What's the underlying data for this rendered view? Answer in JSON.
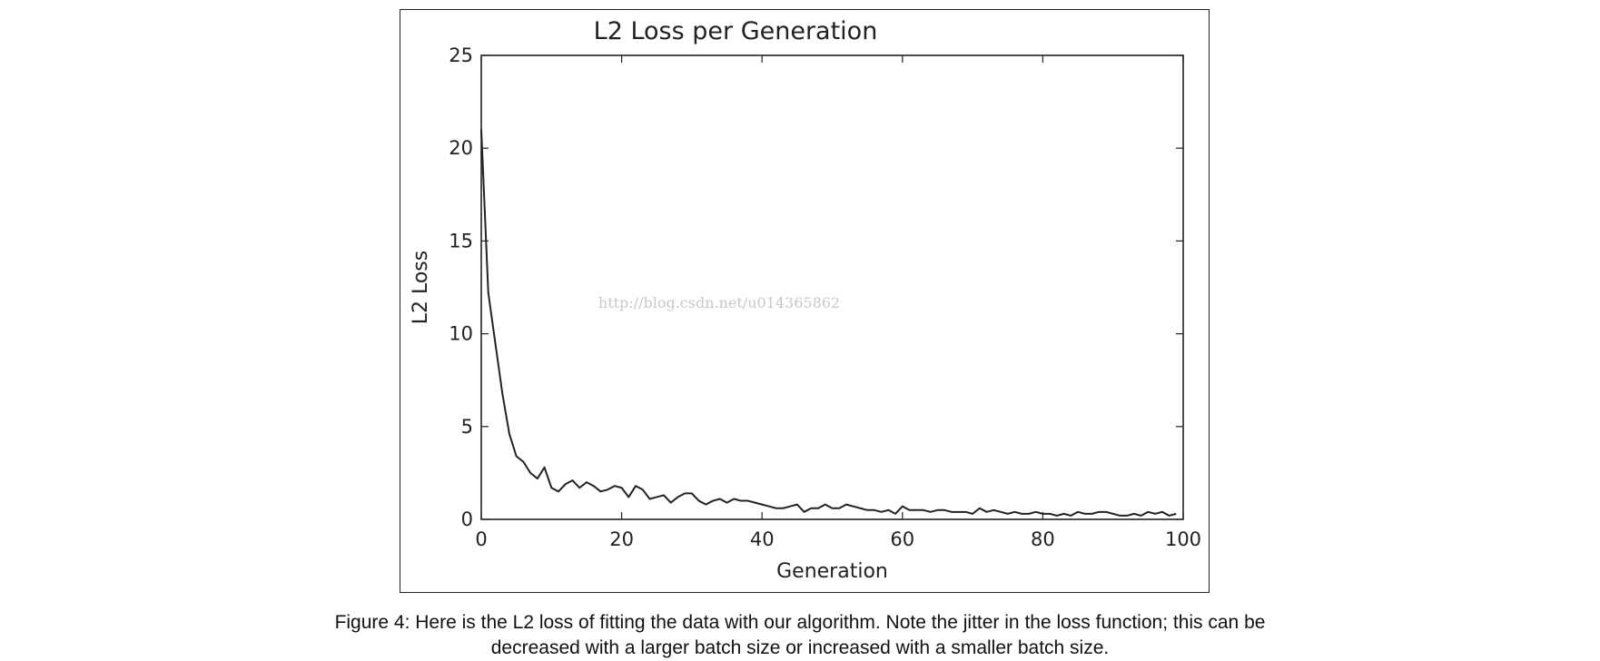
{
  "caption": {
    "line1": "Figure 4: Here is the L2 loss of fitting the data with our algorithm. Note the jitter in the loss function; this can be",
    "line2": "decreased with a larger batch size or increased with a smaller batch size."
  },
  "watermark": "http://blog.csdn.net/u014365862",
  "colors": {
    "line": "#222222",
    "axes": "#222222",
    "background": "#ffffff"
  },
  "chart_data": {
    "type": "line",
    "title": "L2 Loss per Generation",
    "xlabel": "Generation",
    "ylabel": "L2 Loss",
    "xlim": [
      0,
      100
    ],
    "ylim": [
      0,
      25
    ],
    "xticks": [
      0,
      20,
      40,
      60,
      80,
      100
    ],
    "yticks": [
      0,
      5,
      10,
      15,
      20,
      25
    ],
    "grid": false,
    "legend": "none",
    "x": [
      0,
      1,
      2,
      3,
      4,
      5,
      6,
      7,
      8,
      9,
      10,
      11,
      12,
      13,
      14,
      15,
      16,
      17,
      18,
      19,
      20,
      21,
      22,
      23,
      24,
      25,
      26,
      27,
      28,
      29,
      30,
      31,
      32,
      33,
      34,
      35,
      36,
      37,
      38,
      39,
      40,
      41,
      42,
      43,
      44,
      45,
      46,
      47,
      48,
      49,
      50,
      51,
      52,
      53,
      54,
      55,
      56,
      57,
      58,
      59,
      60,
      61,
      62,
      63,
      64,
      65,
      66,
      67,
      68,
      69,
      70,
      71,
      72,
      73,
      74,
      75,
      76,
      77,
      78,
      79,
      80,
      81,
      82,
      83,
      84,
      85,
      86,
      87,
      88,
      89,
      90,
      91,
      92,
      93,
      94,
      95,
      96,
      97,
      98,
      99
    ],
    "series": [
      {
        "values": [
          21.0,
          12.2,
          9.5,
          6.8,
          4.6,
          3.4,
          3.1,
          2.5,
          2.2,
          2.8,
          1.7,
          1.5,
          1.9,
          2.1,
          1.7,
          2.0,
          1.8,
          1.5,
          1.6,
          1.8,
          1.7,
          1.2,
          1.8,
          1.6,
          1.1,
          1.2,
          1.3,
          0.9,
          1.2,
          1.4,
          1.4,
          1.0,
          0.8,
          1.0,
          1.1,
          0.9,
          1.1,
          1.0,
          1.0,
          0.9,
          0.8,
          0.7,
          0.6,
          0.6,
          0.7,
          0.8,
          0.4,
          0.6,
          0.6,
          0.8,
          0.6,
          0.6,
          0.8,
          0.7,
          0.6,
          0.5,
          0.5,
          0.4,
          0.5,
          0.3,
          0.7,
          0.5,
          0.5,
          0.5,
          0.4,
          0.5,
          0.5,
          0.4,
          0.4,
          0.4,
          0.3,
          0.6,
          0.4,
          0.5,
          0.4,
          0.3,
          0.4,
          0.3,
          0.3,
          0.4,
          0.3,
          0.3,
          0.2,
          0.3,
          0.2,
          0.4,
          0.3,
          0.3,
          0.4,
          0.4,
          0.3,
          0.2,
          0.2,
          0.3,
          0.2,
          0.4,
          0.3,
          0.4,
          0.2,
          0.3
        ]
      }
    ]
  }
}
